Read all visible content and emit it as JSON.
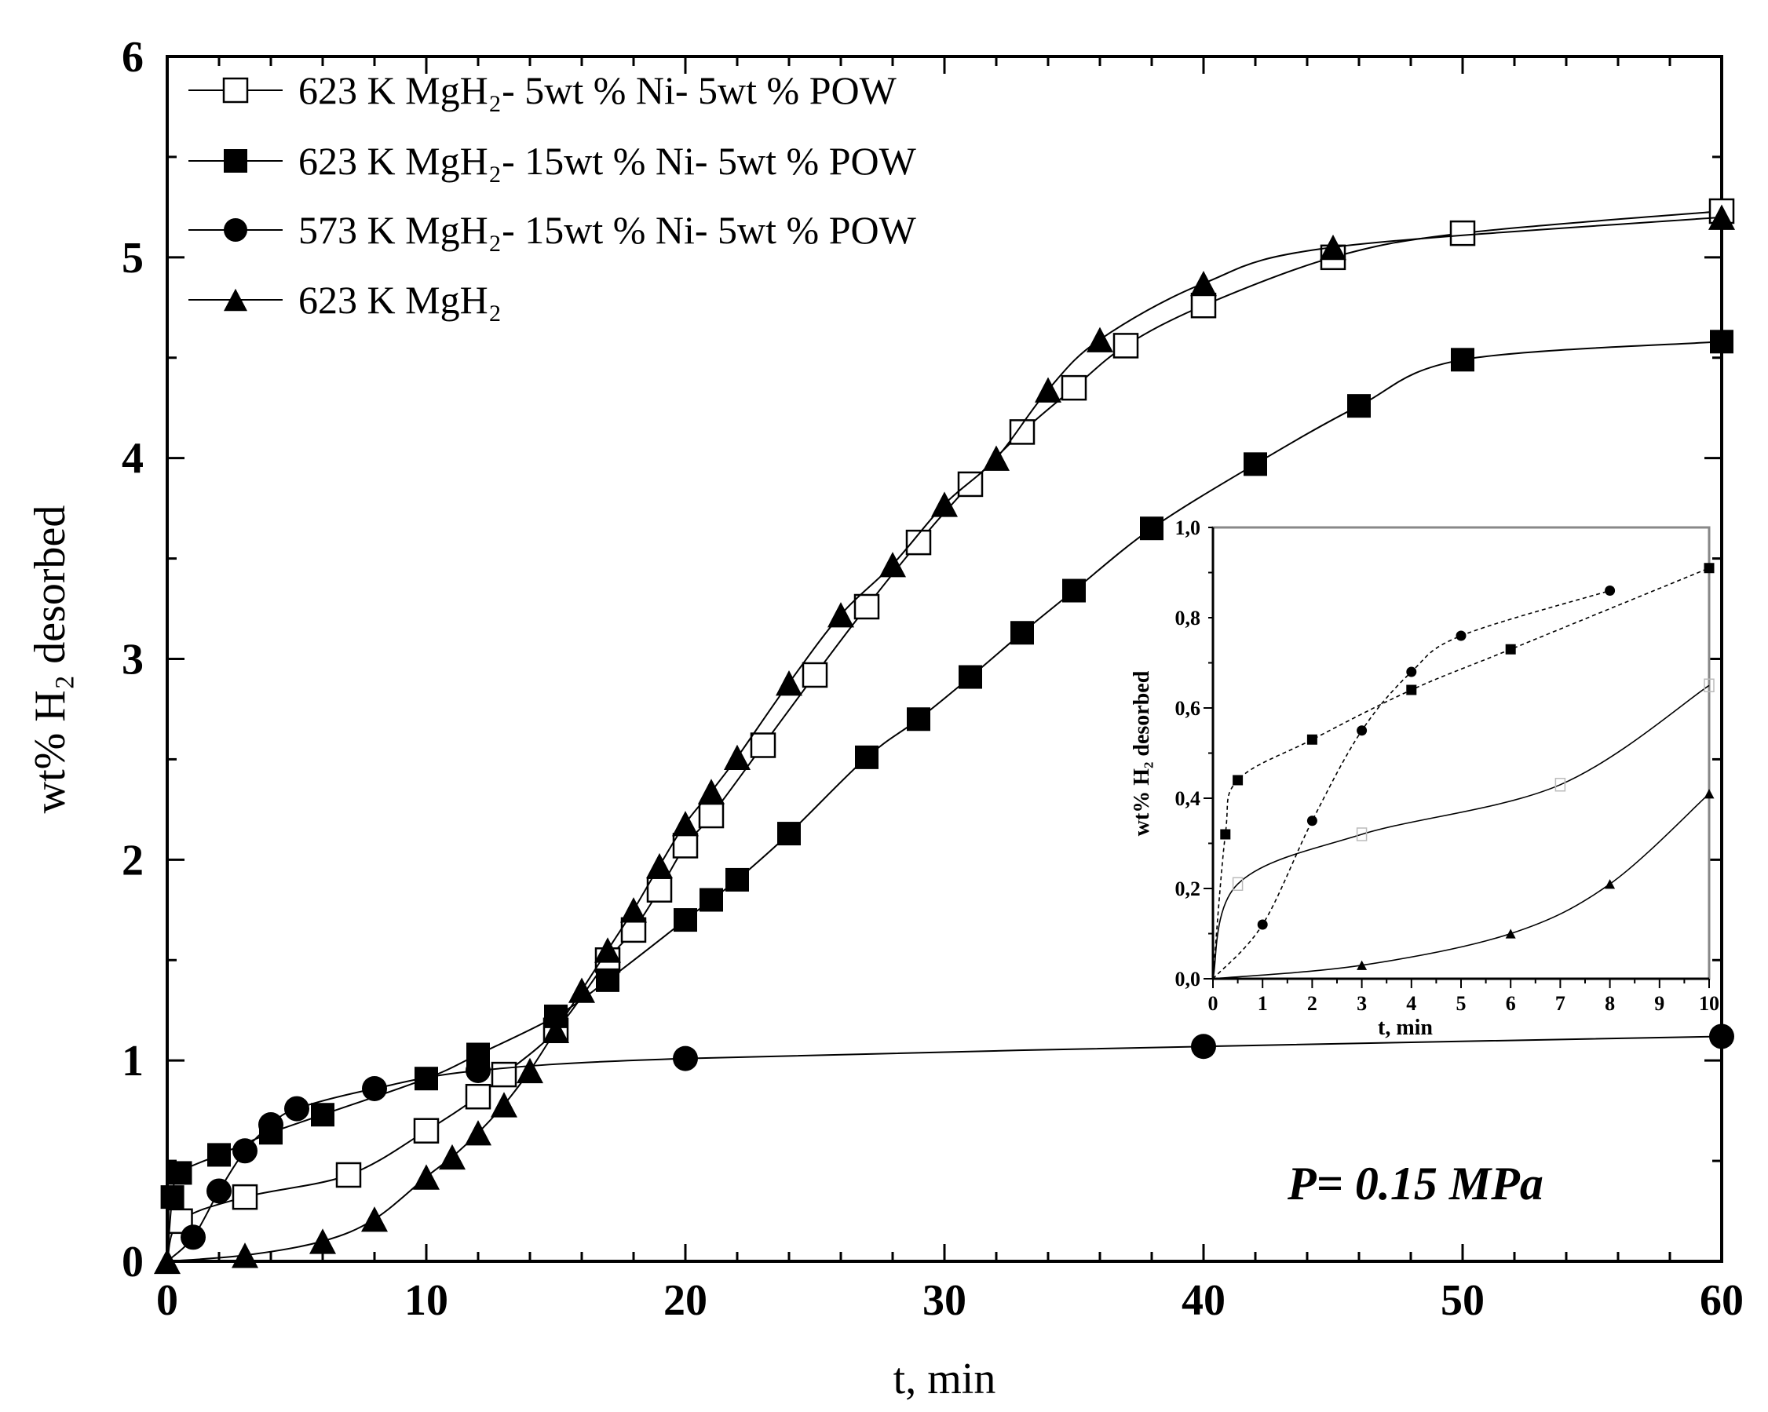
{
  "chart_data": {
    "type": "line",
    "xlabel": "t, min",
    "ylabel": "wt% H₂ desorbed",
    "xlim": [
      0,
      60
    ],
    "ylim": [
      0,
      6
    ],
    "x_major_ticks": [
      0,
      10,
      20,
      30,
      40,
      50,
      60
    ],
    "y_major_ticks": [
      0,
      1,
      2,
      3,
      4,
      5,
      6
    ],
    "x_tick_labels": [
      "0",
      "10",
      "20",
      "30",
      "40",
      "50",
      "60"
    ],
    "y_tick_labels": [
      "0",
      "1",
      "2",
      "3",
      "4",
      "5",
      "6"
    ],
    "legend_position": "top-left",
    "annotation": "P= 0.15 MPa",
    "series": [
      {
        "name": "623 K MgH₂- 5wt % Ni- 5wt % POW",
        "marker": "open-square",
        "x": [
          0,
          0.5,
          3,
          7,
          10,
          12,
          13,
          15,
          17,
          18,
          19,
          20,
          21,
          23,
          25,
          27,
          29,
          31,
          33,
          35,
          37,
          40,
          45,
          50,
          60
        ],
        "y": [
          0,
          0.2,
          0.32,
          0.43,
          0.65,
          0.82,
          0.93,
          1.15,
          1.5,
          1.65,
          1.85,
          2.07,
          2.22,
          2.57,
          2.92,
          3.26,
          3.58,
          3.87,
          4.13,
          4.35,
          4.56,
          4.76,
          5.0,
          5.12,
          5.23
        ]
      },
      {
        "name": "623 K MgH₂- 15wt  % Ni- 5wt % POW",
        "marker": "filled-square",
        "x": [
          0,
          0.2,
          0.5,
          2,
          4,
          6,
          10,
          12,
          15,
          17,
          20,
          21,
          22,
          24,
          27,
          29,
          31,
          33,
          35,
          38,
          42,
          46,
          50,
          60
        ],
        "y": [
          0,
          0.32,
          0.44,
          0.53,
          0.64,
          0.73,
          0.91,
          1.03,
          1.22,
          1.4,
          1.7,
          1.8,
          1.9,
          2.13,
          2.51,
          2.7,
          2.91,
          3.13,
          3.34,
          3.65,
          3.97,
          4.26,
          4.49,
          4.58
        ]
      },
      {
        "name": "573 K MgH₂- 15wt % Ni- 5wt % POW",
        "marker": "filled-circle",
        "x": [
          0,
          1,
          2,
          3,
          4,
          5,
          8,
          12,
          20,
          40,
          60
        ],
        "y": [
          0,
          0.12,
          0.35,
          0.55,
          0.68,
          0.76,
          0.86,
          0.95,
          1.01,
          1.07,
          1.12
        ]
      },
      {
        "name": "623 K MgH₂",
        "marker": "filled-triangle",
        "x": [
          0,
          3,
          6,
          8,
          10,
          11,
          12,
          13,
          14,
          15,
          16,
          17,
          18,
          19,
          20,
          21,
          22,
          24,
          26,
          28,
          30,
          32,
          34,
          36,
          40,
          45,
          60
        ],
        "y": [
          0,
          0.03,
          0.1,
          0.21,
          0.42,
          0.52,
          0.64,
          0.78,
          0.95,
          1.15,
          1.35,
          1.55,
          1.75,
          1.97,
          2.18,
          2.34,
          2.51,
          2.88,
          3.22,
          3.47,
          3.77,
          4.0,
          4.34,
          4.59,
          4.87,
          5.05,
          5.2
        ]
      }
    ],
    "inset": {
      "xlabel": "t, min",
      "ylabel": "wt% H₂ desorbed",
      "xlim": [
        0,
        10
      ],
      "ylim": [
        0,
        1.0
      ],
      "x_ticks": [
        0,
        1,
        2,
        3,
        4,
        5,
        6,
        7,
        8,
        9,
        10
      ],
      "y_ticks": [
        0,
        0.2,
        0.4,
        0.6,
        0.8,
        1.0
      ],
      "x_tick_labels": [
        "0",
        "1",
        "2",
        "3",
        "4",
        "5",
        "6",
        "7",
        "8",
        "9",
        "10"
      ],
      "y_tick_labels": [
        "0,0",
        "0,2",
        "0,4",
        "0,6",
        "0,8",
        "1,0"
      ],
      "series": [
        {
          "name": "623 K MgH₂- 15wt  % Ni- 5wt % POW",
          "marker": "filled-square",
          "x": [
            0,
            0.25,
            0.5,
            2,
            4,
            6,
            10
          ],
          "y": [
            0,
            0.32,
            0.44,
            0.53,
            0.64,
            0.73,
            0.91
          ]
        },
        {
          "name": "573 K MgH₂- 15wt % Ni- 5wt % POW",
          "marker": "filled-circle",
          "x": [
            0,
            1,
            2,
            3,
            4,
            5,
            8
          ],
          "y": [
            0,
            0.12,
            0.35,
            0.55,
            0.68,
            0.76,
            0.86
          ]
        },
        {
          "name": "623 K MgH₂- 5wt % Ni- 5wt % POW",
          "marker": "open-square",
          "x": [
            0,
            0.5,
            3,
            7,
            10
          ],
          "y": [
            0,
            0.21,
            0.32,
            0.43,
            0.65
          ]
        },
        {
          "name": "623 K MgH₂",
          "marker": "filled-triangle",
          "x": [
            0,
            3,
            6,
            8,
            10
          ],
          "y": [
            0,
            0.03,
            0.1,
            0.21,
            0.41
          ]
        }
      ]
    }
  }
}
